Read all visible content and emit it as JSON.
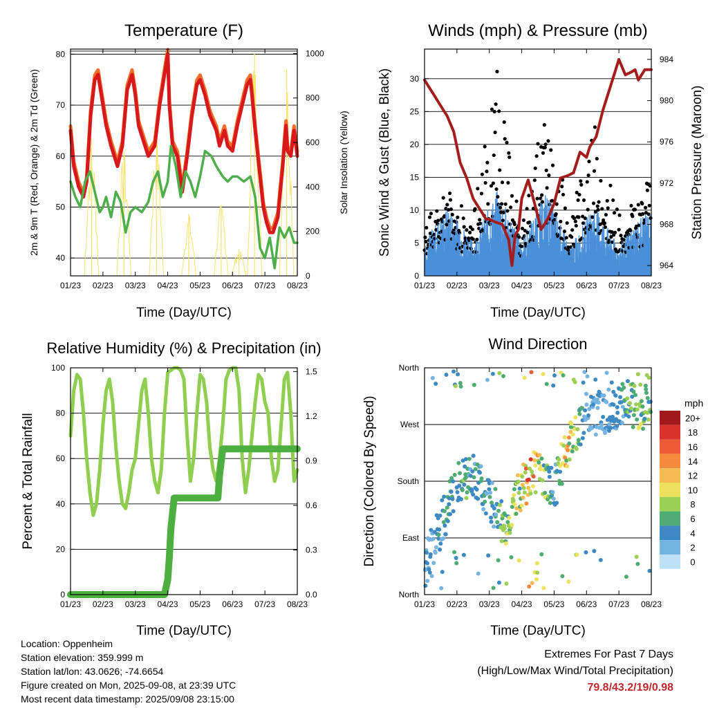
{
  "colors": {
    "temp_2m": "#d7191c",
    "temp_9m": "#f46d2a",
    "dewpoint": "#4daf4a",
    "solar": "#f7e26b",
    "wind_speed": "#4a90d9",
    "wind_gust": "#000000",
    "pressure": "#a51c1c",
    "rh": "#8fce4f",
    "precip": "#4caf3f",
    "extremes_text": "#c0272d"
  },
  "chart_data": [
    {
      "id": "temperature",
      "type": "line",
      "title": "Temperature (F)",
      "xlabel": "Time (Day/UTC)",
      "ylabel": "2m & 9m T (Red, Orange) & 2m Td (Green)",
      "ylabel_right": "Solar Insolation (Yellow)",
      "x_ticks": [
        "01/23",
        "02/23",
        "03/23",
        "04/23",
        "05/23",
        "06/23",
        "07/23",
        "08/23"
      ],
      "y_ticks": [
        40,
        50,
        60,
        70,
        80
      ],
      "y2_ticks": [
        0,
        200,
        400,
        600,
        800,
        1000
      ],
      "xlim": [
        0,
        7
      ],
      "ylim": [
        36.5,
        81
      ],
      "y2lim": [
        0,
        1020
      ],
      "grid": true,
      "series": [
        {
          "key": "temp_2m",
          "x": [
            0,
            0.1,
            0.25,
            0.4,
            0.5,
            0.62,
            0.75,
            0.85,
            1.0,
            1.1,
            1.25,
            1.45,
            1.6,
            1.75,
            1.9,
            2.0,
            2.1,
            2.25,
            2.4,
            2.6,
            2.75,
            2.9,
            3.0,
            3.05,
            3.15,
            3.3,
            3.45,
            3.6,
            3.75,
            3.9,
            4.0,
            4.15,
            4.3,
            4.5,
            4.6,
            4.75,
            4.85,
            5.0,
            5.15,
            5.3,
            5.45,
            5.55,
            5.6,
            5.7,
            5.85,
            5.95,
            6.05,
            6.15,
            6.25,
            6.4,
            6.55,
            6.65,
            6.7,
            6.8,
            6.9,
            7.0
          ],
          "y": [
            65,
            58,
            54,
            52,
            55,
            68,
            75,
            76,
            70,
            66,
            62,
            58,
            62,
            73,
            76,
            72,
            66,
            63,
            60,
            62,
            70,
            76,
            80,
            70,
            62,
            60,
            53,
            60,
            68,
            74,
            75,
            72,
            68,
            65,
            62,
            65,
            62,
            61,
            66,
            70,
            74,
            75,
            72,
            65,
            56,
            50,
            47,
            45,
            45,
            48,
            58,
            66,
            61,
            60,
            65,
            60
          ]
        },
        {
          "key": "dewpoint",
          "x": [
            0,
            0.15,
            0.3,
            0.45,
            0.6,
            0.75,
            0.9,
            1.0,
            1.1,
            1.25,
            1.4,
            1.55,
            1.7,
            1.85,
            2.0,
            2.2,
            2.4,
            2.55,
            2.7,
            2.85,
            3.0,
            3.1,
            3.25,
            3.4,
            3.55,
            3.7,
            3.85,
            4.0,
            4.15,
            4.35,
            4.5,
            4.7,
            4.85,
            5.0,
            5.15,
            5.35,
            5.55,
            5.7,
            5.85,
            6.0,
            6.15,
            6.3,
            6.45,
            6.6,
            6.75,
            6.9,
            7.0
          ],
          "y": [
            55,
            52,
            50,
            55,
            57,
            53,
            49,
            50,
            52,
            48,
            53,
            51,
            45,
            49,
            50,
            49,
            51,
            55,
            57,
            52,
            55,
            62,
            58,
            52,
            57,
            55,
            52,
            56,
            61,
            60,
            58,
            56,
            55,
            56,
            56,
            55,
            56,
            52,
            42,
            40,
            44,
            38,
            46,
            44,
            46,
            43,
            43
          ]
        }
      ],
      "solar_peaks": [
        {
          "x": 0.65,
          "y": 620
        },
        {
          "x": 1.65,
          "y": 560
        },
        {
          "x": 2.65,
          "y": 640
        },
        {
          "x": 3.65,
          "y": 280
        },
        {
          "x": 4.65,
          "y": 320
        },
        {
          "x": 5.2,
          "y": 120
        },
        {
          "x": 5.68,
          "y": 1000
        },
        {
          "x": 6.67,
          "y": 930
        }
      ]
    },
    {
      "id": "winds",
      "type": "scatter",
      "title": "Winds (mph) & Pressure (mb)",
      "xlabel": "Time (Day/UTC)",
      "ylabel": "Sonic Wind & Gust (Blue, Black)",
      "ylabel_right": "Station Pressure (Maroon)",
      "x_ticks": [
        "01/23",
        "02/23",
        "03/23",
        "04/23",
        "05/23",
        "06/23",
        "07/23",
        "08/23"
      ],
      "y_ticks": [
        0,
        5,
        10,
        15,
        20,
        25,
        30
      ],
      "y2_ticks": [
        964,
        968,
        972,
        976,
        980,
        984
      ],
      "xlim": [
        0,
        7
      ],
      "ylim": [
        0,
        34.5
      ],
      "y2lim": [
        963,
        985
      ],
      "grid": true,
      "pressure": {
        "x": [
          0,
          0.1,
          0.3,
          0.5,
          0.7,
          0.9,
          1.0,
          1.1,
          1.3,
          1.5,
          1.7,
          1.9,
          2.0,
          2.2,
          2.4,
          2.6,
          2.7,
          2.8,
          2.9,
          3.0,
          3.2,
          3.4,
          3.6,
          3.8,
          4.0,
          4.2,
          4.4,
          4.6,
          4.8,
          5.0,
          5.1,
          5.3,
          5.5,
          5.7,
          5.9,
          6.0,
          6.2,
          6.4,
          6.5,
          6.6,
          6.8,
          7.0
        ],
        "y": [
          982,
          981.5,
          980.5,
          979.5,
          978.5,
          977,
          975.5,
          974,
          972.5,
          970.5,
          969.5,
          968.5,
          968.5,
          968.2,
          968,
          966.5,
          964,
          967,
          967.5,
          970.5,
          972.3,
          970,
          967.5,
          968.5,
          970,
          972.5,
          972.7,
          973,
          975,
          974.5,
          975.5,
          976.5,
          979,
          981,
          983,
          984,
          982.5,
          982.8,
          983,
          982,
          983,
          983
        ]
      },
      "wind_mean_by_day": [
        5,
        10,
        5,
        12,
        5,
        12,
        4,
        10,
        4,
        9
      ],
      "gust_peak_by_day": [
        8,
        14,
        9,
        32,
        7,
        28,
        10,
        24,
        10,
        15
      ]
    },
    {
      "id": "humidity",
      "type": "line",
      "title": "Relative Humidity (%) & Precipitation (in)",
      "xlabel": "Time (Day/UTC)",
      "ylabel": "Percent & Total Rainfall",
      "x_ticks": [
        "01/23",
        "02/23",
        "03/23",
        "04/23",
        "05/23",
        "06/23",
        "07/23",
        "08/23"
      ],
      "y_ticks": [
        0,
        20,
        40,
        60,
        80,
        100
      ],
      "y2_ticks": [
        "0.0",
        "0.3",
        "0.6",
        "0.9",
        "1.2",
        "1.5"
      ],
      "xlim": [
        0,
        7
      ],
      "ylim": [
        0,
        100
      ],
      "y2lim": [
        0,
        1.525
      ],
      "grid": true,
      "series": [
        {
          "key": "rh",
          "x": [
            0,
            0.1,
            0.2,
            0.3,
            0.4,
            0.5,
            0.6,
            0.7,
            0.8,
            0.9,
            1.0,
            1.1,
            1.2,
            1.3,
            1.4,
            1.5,
            1.6,
            1.7,
            1.8,
            1.9,
            2.0,
            2.1,
            2.2,
            2.3,
            2.4,
            2.5,
            2.6,
            2.7,
            2.8,
            2.9,
            3.0,
            3.1,
            3.2,
            3.3,
            3.4,
            3.5,
            3.6,
            3.7,
            3.8,
            3.9,
            4.0,
            4.1,
            4.2,
            4.3,
            4.4,
            4.5,
            4.6,
            4.7,
            4.8,
            4.9,
            5.0,
            5.1,
            5.2,
            5.3,
            5.4,
            5.5,
            5.6,
            5.7,
            5.8,
            5.9,
            6.0,
            6.1,
            6.2,
            6.3,
            6.4,
            6.5,
            6.6,
            6.7,
            6.8,
            6.9,
            7.0
          ],
          "y": [
            70,
            90,
            97,
            95,
            80,
            60,
            45,
            35,
            40,
            55,
            75,
            90,
            95,
            85,
            65,
            50,
            40,
            38,
            45,
            55,
            60,
            75,
            90,
            95,
            80,
            60,
            50,
            45,
            55,
            80,
            98,
            99,
            100,
            100,
            99,
            95,
            70,
            50,
            60,
            80,
            97,
            95,
            85,
            65,
            55,
            50,
            60,
            75,
            95,
            99,
            100,
            100,
            90,
            60,
            45,
            55,
            70,
            85,
            97,
            95,
            85,
            80,
            60,
            50,
            55,
            75,
            95,
            98,
            80,
            50,
            55
          ]
        },
        {
          "key": "precip",
          "x": [
            0,
            0.5,
            1.0,
            1.5,
            2.0,
            2.5,
            2.9,
            3.0,
            3.05,
            3.1,
            3.2,
            4.0,
            4.55,
            4.6,
            4.7,
            5.0,
            6.0,
            7.0
          ],
          "y": [
            0,
            0,
            0,
            0,
            0,
            0,
            0,
            0.1,
            0.25,
            0.45,
            0.65,
            0.65,
            0.65,
            0.8,
            0.98,
            0.98,
            0.98,
            0.98
          ]
        }
      ]
    },
    {
      "id": "direction",
      "type": "scatter",
      "title": "Wind Direction",
      "xlabel": "Time (Day/UTC)",
      "ylabel": "Direction (Colored By Speed)",
      "x_ticks": [
        "01/23",
        "02/23",
        "03/23",
        "04/23",
        "05/23",
        "06/23",
        "07/23",
        "08/23"
      ],
      "y_ticks": [
        "North",
        "East",
        "South",
        "West",
        "North"
      ],
      "xlim": [
        0,
        7
      ],
      "ylim": [
        0,
        360
      ],
      "grid": true,
      "legend_title": "mph",
      "legend_labels": [
        "20+",
        "18",
        "16",
        "14",
        "12",
        "10",
        "8",
        "6",
        "4",
        "2",
        "0"
      ],
      "legend_colors": [
        "#a1181c",
        "#d9312b",
        "#ec5b34",
        "#f58a3c",
        "#f9bb51",
        "#ece25e",
        "#9ccf55",
        "#4dac72",
        "#3c89c3",
        "#75b3e1",
        "#bfe1f5"
      ]
    }
  ],
  "footer": {
    "location": "Location: Oppenheim",
    "elevation": "Station elevation: 359.999 m",
    "latlon": "Station lat/lon: 43.0626; -74.6654",
    "created": "Figure created on Mon, 2025-09-08, at 23:39 UTC",
    "recent": "Most recent data timestamp: 2025/09/08 23:15:00"
  },
  "extremes": {
    "title": "Extremes For Past 7 Days",
    "subtitle": "(High/Low/Max Wind/Total Precipitation)",
    "values": "79.8/43.2/19/0.98"
  }
}
